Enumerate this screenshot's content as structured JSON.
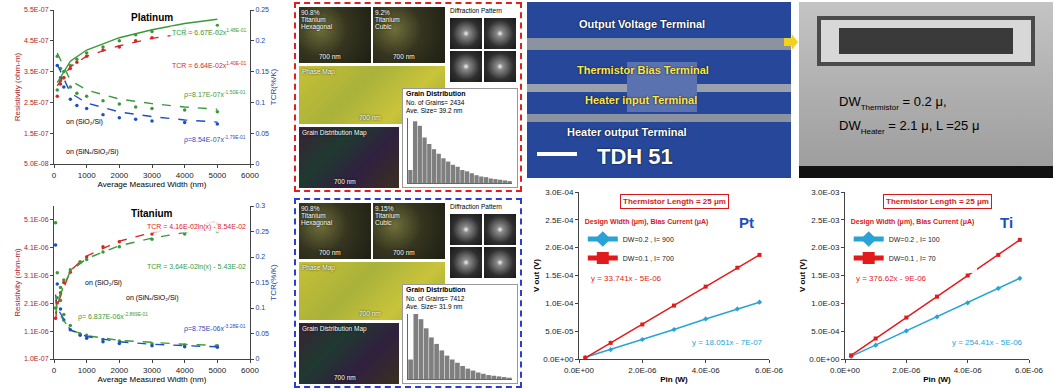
{
  "chart_data": [
    {
      "type": "scatter",
      "title": "Platinum",
      "xlabel": "Average Measured Width (nm)",
      "ylabel": "Resistivity (ohm-m)",
      "y2label": "TCR(%/K)",
      "grid": false,
      "xlim": [
        0,
        6000
      ],
      "xticks": [
        0,
        1000,
        2000,
        3000,
        4000,
        5000,
        6000
      ],
      "ylim": [
        5e-08,
        5.5e-07
      ],
      "yticks": [
        {
          "value": 5e-08,
          "label": "5.0E-08"
        },
        {
          "value": 1.5e-07,
          "label": "1.5E-07"
        },
        {
          "value": 2.5e-07,
          "label": "2.5E-07"
        },
        {
          "value": 3.5e-07,
          "label": "3.5E-07"
        },
        {
          "value": 4.5e-07,
          "label": "4.5E-07"
        },
        {
          "value": 5.5e-07,
          "label": "5.5E-07"
        }
      ],
      "y2lim": [
        0,
        0.25
      ],
      "y2ticks": [
        0,
        0.05,
        0.1,
        0.15,
        0.2,
        0.25
      ],
      "series": [
        {
          "type": "scatter",
          "axis": "y2",
          "color": "#3a9a3a",
          "marker": "circle",
          "x": [
            100,
            200,
            300,
            500,
            700,
            1000,
            1500,
            2000,
            2500,
            3000,
            4000,
            5000
          ],
          "values": [
            0.12,
            0.135,
            0.15,
            0.16,
            0.17,
            0.18,
            0.19,
            0.2,
            0.21,
            0.215,
            0.22,
            0.225
          ]
        },
        {
          "type": "scatter",
          "axis": "y2",
          "color": "#d62728",
          "marker": "circle",
          "x": [
            100,
            200,
            300,
            500,
            700,
            1000,
            1500,
            2000,
            2500,
            3000,
            4000,
            5000
          ],
          "values": [
            0.11,
            0.13,
            0.14,
            0.155,
            0.165,
            0.175,
            0.185,
            0.19,
            0.2,
            0.205,
            0.21,
            0.215
          ]
        },
        {
          "type": "scatter",
          "axis": "y",
          "color": "#3a9a3a",
          "marker": "circle",
          "x": [
            100,
            200,
            300,
            500,
            700,
            1000,
            1500,
            2000,
            2500,
            3000,
            4000,
            5000
          ],
          "values": [
            4e-07,
            3.6e-07,
            3.3e-07,
            3e-07,
            2.8e-07,
            2.7e-07,
            2.55e-07,
            2.45e-07,
            2.35e-07,
            2.3e-07,
            2.25e-07,
            2.2e-07
          ]
        },
        {
          "type": "scatter",
          "axis": "y",
          "color": "#1f4fbf",
          "marker": "circle",
          "x": [
            100,
            200,
            300,
            500,
            700,
            1000,
            1500,
            2000,
            2500,
            3000,
            4000,
            5000
          ],
          "values": [
            3.7e-07,
            3.3e-07,
            3e-07,
            2.6e-07,
            2.4e-07,
            2.3e-07,
            2.1e-07,
            2e-07,
            1.95e-07,
            1.9e-07,
            1.85e-07,
            1.8e-07
          ]
        },
        {
          "type": "line",
          "axis": "y2",
          "color": "#3a9a3a",
          "line_style": "solid",
          "x": [
            100,
            500,
            1000,
            2000,
            3000,
            4000,
            5000
          ],
          "values": [
            0.132,
            0.167,
            0.185,
            0.205,
            0.218,
            0.228,
            0.235
          ]
        },
        {
          "type": "line",
          "axis": "y2",
          "color": "#d62728",
          "line_style": "dash",
          "x": [
            100,
            500,
            1000,
            2000,
            3000,
            4000,
            5000
          ],
          "values": [
            0.127,
            0.158,
            0.175,
            0.192,
            0.204,
            0.212,
            0.219
          ]
        },
        {
          "type": "line",
          "axis": "y",
          "color": "#3a9a3a",
          "line_style": "dash",
          "x": [
            100,
            500,
            1000,
            2000,
            3000,
            4000,
            5000
          ],
          "values": [
            4.1e-07,
            3.22e-07,
            2.9e-07,
            2.61e-07,
            2.46e-07,
            2.35e-07,
            2.28e-07
          ]
        },
        {
          "type": "line",
          "axis": "y",
          "color": "#1f4fbf",
          "line_style": "dash",
          "x": [
            100,
            500,
            1000,
            2000,
            3000,
            4000,
            5000
          ],
          "values": [
            3.74e-07,
            2.81e-07,
            2.48e-07,
            2.19e-07,
            2.04e-07,
            1.93e-07,
            1.86e-07
          ]
        }
      ],
      "annotations": [
        {
          "text": "TCR = 6.67E-02x",
          "sup": "1.48E-01",
          "color": "#3a9a3a"
        },
        {
          "text": "TCR = 6.64E-02x",
          "sup": "1.40E-01",
          "color": "#d62728"
        },
        {
          "text": "ρ=8.17E-07x",
          "sup": "-1.50E-01",
          "color": "#3a9a3a"
        },
        {
          "text": "ρ=8.54E-07x",
          "sup": "-1.79E-01",
          "color": "#1f4fbf"
        },
        {
          "text": "on (SiO₂/Si)",
          "color": "#000000"
        },
        {
          "text": "on (SiNₓ/SiO₂/Si)",
          "color": "#000000"
        }
      ]
    },
    {
      "type": "scatter",
      "title": "Titanium",
      "xlabel": "Average Measured Width (nm)",
      "ylabel": "Resistivity (ohm-m)",
      "y2label": "TCR(%/K)",
      "grid": false,
      "xlim": [
        0,
        6000
      ],
      "xticks": [
        0,
        1000,
        2000,
        3000,
        4000,
        5000,
        6000
      ],
      "ylim": [
        1e-07,
        5.6e-06
      ],
      "yticks": [
        {
          "value": 1e-07,
          "label": "1.0E-07"
        },
        {
          "value": 1.1e-06,
          "label": "1.1E-06"
        },
        {
          "value": 2.1e-06,
          "label": "2.1E-06"
        },
        {
          "value": 3.1e-06,
          "label": "3.1E-06"
        },
        {
          "value": 4.1e-06,
          "label": "4.1E-06"
        },
        {
          "value": 5.1e-06,
          "label": "5.1E-06"
        }
      ],
      "y2lim": [
        0,
        0.3
      ],
      "y2ticks": [
        0,
        0.05,
        0.1,
        0.15,
        0.2,
        0.25,
        0.3
      ],
      "series": [
        {
          "type": "scatter",
          "axis": "y2",
          "color": "#d62728",
          "marker": "circle",
          "x": [
            50,
            100,
            200,
            300,
            500,
            800,
            1000,
            1500,
            2000,
            3000,
            4000,
            5000
          ],
          "values": [
            0.08,
            0.11,
            0.13,
            0.15,
            0.17,
            0.19,
            0.2,
            0.22,
            0.23,
            0.245,
            0.255,
            0.265
          ]
        },
        {
          "type": "scatter",
          "axis": "y2",
          "color": "#3a9a3a",
          "marker": "circle",
          "x": [
            50,
            100,
            200,
            300,
            500,
            800,
            1000,
            1500,
            2000,
            3000,
            4000,
            5000
          ],
          "values": [
            0.1,
            0.12,
            0.14,
            0.155,
            0.175,
            0.19,
            0.195,
            0.21,
            0.22,
            0.235,
            0.245,
            0.25
          ]
        },
        {
          "type": "scatter",
          "axis": "y",
          "color": "#3a9a3a",
          "marker": "circle",
          "x": [
            50,
            100,
            200,
            300,
            500,
            800,
            1000,
            1500,
            2000,
            3000,
            4000,
            5000
          ],
          "values": [
            5e-06,
            3.2e-06,
            2.2e-06,
            1.7e-06,
            1.3e-06,
            1e-06,
            9.5e-07,
            8e-07,
            7.5e-07,
            6.5e-07,
            6e-07,
            5.8e-07
          ]
        },
        {
          "type": "scatter",
          "axis": "y",
          "color": "#1f4fbf",
          "marker": "circle",
          "x": [
            50,
            100,
            200,
            300,
            500,
            800,
            1000,
            1500,
            2000,
            3000,
            4000,
            5000
          ],
          "values": [
            4.2e-06,
            2.8e-06,
            1.9e-06,
            1.5e-06,
            1.15e-06,
            9.5e-07,
            8.5e-07,
            7.2e-07,
            6.6e-07,
            5.8e-07,
            5.4e-07,
            5.2e-07
          ]
        },
        {
          "type": "line",
          "axis": "y2",
          "color": "#d62728",
          "line_style": "dash",
          "x": [
            50,
            100,
            500,
            1000,
            2000,
            3000,
            4000,
            5000
          ],
          "values": [
            0.077,
            0.106,
            0.173,
            0.202,
            0.231,
            0.248,
            0.26,
            0.269
          ]
        },
        {
          "type": "line",
          "axis": "y2",
          "color": "#3a9a3a",
          "line_style": "dash",
          "x": [
            50,
            100,
            500,
            1000,
            2000,
            3000,
            4000,
            5000
          ],
          "values": [
            0.088,
            0.113,
            0.172,
            0.197,
            0.222,
            0.237,
            0.248,
            0.256
          ]
        },
        {
          "type": "line",
          "axis": "y",
          "color": "#3a9a3a",
          "line_style": "dash",
          "x": [
            50,
            100,
            500,
            1000,
            2000,
            3000,
            4000,
            5000
          ],
          "values": [
            2.23e-06,
            1.82e-06,
            1.15e-06,
            9.4e-07,
            7.7e-07,
            6.9e-07,
            6.3e-07,
            5.9e-07
          ]
        },
        {
          "type": "line",
          "axis": "y",
          "color": "#1f4fbf",
          "line_style": "dash",
          "x": [
            50,
            100,
            500,
            1000,
            2000,
            3000,
            4000,
            5000
          ],
          "values": [
            2.42e-06,
            1.93e-06,
            1.14e-06,
            9.1e-07,
            7.2e-07,
            6.3e-07,
            5.8e-07,
            5.4e-07
          ]
        }
      ],
      "annotations": [
        {
          "text": "TCR = 4.16E-02ln(x) - 8.54E-02",
          "color": "#d62728"
        },
        {
          "text": "TCR = 3.64E-02ln(x) - 5.43E-02",
          "color": "#3a9a3a"
        },
        {
          "text": "ρ= 6.837E-06x",
          "sup": "-2.869E-01",
          "color": "#3a9a3a"
        },
        {
          "text": "ρ=8.75E-06x",
          "sup": "-3.28E-01",
          "color": "#1f4fbf"
        },
        {
          "text": "on (SiO₂/Si)",
          "color": "#000000"
        },
        {
          "text": "on (SiNₓ/SiO₂/Si)",
          "color": "#000000"
        }
      ]
    },
    {
      "type": "line",
      "title": "Thermistor Length = 25 μm",
      "subtitle": "Design Width (μm), Bias Current (μA)",
      "xlabel": "Pin (W)",
      "ylabel": "V out (V)",
      "grid": false,
      "legend": "top left",
      "xlim": [
        0,
        6e-06
      ],
      "xticks": [
        {
          "value": 0,
          "label": "0.0E+00"
        },
        {
          "value": 2e-06,
          "label": "2.0E-06"
        },
        {
          "value": 4e-06,
          "label": "4.0E-06"
        },
        {
          "value": 6e-06,
          "label": "6.0E-06"
        }
      ],
      "ylim": [
        0,
        0.0003
      ],
      "yticks": [
        {
          "value": 0,
          "label": "0.0E+00"
        },
        {
          "value": 5e-05,
          "label": "5.0E-05"
        },
        {
          "value": 0.0001,
          "label": "1.0E-04"
        },
        {
          "value": 0.00015,
          "label": "1.5E-04"
        },
        {
          "value": 0.0002,
          "label": "2.0E-04"
        },
        {
          "value": 0.00025,
          "label": "2.5E-04"
        },
        {
          "value": 0.0003,
          "label": "3.0E-04"
        }
      ],
      "x": [
        2e-07,
        1e-06,
        2e-06,
        3e-06,
        4e-06,
        5e-06,
        5.7e-06
      ],
      "series": [
        {
          "name": "DW=0.2 , I= 900",
          "color": "#29a3d6",
          "marker": "diamond",
          "values": [
            3e-06,
            1.7e-05,
            3.5e-05,
            5.3e-05,
            7.2e-05,
            9e-05,
            0.000102
          ]
        },
        {
          "name": "DW=0.1 , I= 700",
          "color": "#e31a1c",
          "marker": "square",
          "values": [
            2e-06,
            2.9e-05,
            6.2e-05,
            9.6e-05,
            0.00013,
            0.000164,
            0.000187
          ]
        }
      ],
      "annotations": [
        {
          "text": "y = 33.741x - 5E-06",
          "color": "#e31a1c"
        },
        {
          "text": "y = 18.051x - 7E-07",
          "color": "#29a3d6"
        },
        {
          "text": "Pt",
          "color": "#1f4fbf"
        }
      ]
    },
    {
      "type": "line",
      "title": "Thermistor Length = 25 μm",
      "subtitle": "Design Width (μm), Bias Current (μA)",
      "xlabel": "Pin (W)",
      "ylabel": "V out (V)",
      "grid": false,
      "legend": "top left",
      "xlim": [
        0,
        6e-06
      ],
      "xticks": [
        {
          "value": 0,
          "label": "0.0E+00"
        },
        {
          "value": 2e-06,
          "label": "2.0E-06"
        },
        {
          "value": 4e-06,
          "label": "4.0E-06"
        },
        {
          "value": 6e-06,
          "label": "6.0E-06"
        }
      ],
      "ylim": [
        0,
        0.003
      ],
      "yticks": [
        {
          "value": 0,
          "label": "0.0E+00"
        },
        {
          "value": 0.0005,
          "label": "5.0E-04"
        },
        {
          "value": 0.001,
          "label": "1.0E-03"
        },
        {
          "value": 0.0015,
          "label": "1.5E-03"
        },
        {
          "value": 0.002,
          "label": "2.0E-03"
        },
        {
          "value": 0.0025,
          "label": "2.5E-03"
        },
        {
          "value": 0.003,
          "label": "3.0E-03"
        }
      ],
      "x": [
        2e-07,
        1e-06,
        2e-06,
        3e-06,
        4e-06,
        5e-06,
        5.7e-06
      ],
      "series": [
        {
          "name": "DW=0.2 , I= 100",
          "color": "#29a3d6",
          "marker": "diamond",
          "values": [
            4.6e-05,
            0.000249,
            0.000504,
            0.000758,
            0.00101,
            0.00127,
            0.00145
          ]
        },
        {
          "name": "DW=0.1 , I= 70",
          "color": "#e31a1c",
          "marker": "square",
          "values": [
            6.6e-05,
            0.000368,
            0.000744,
            0.00112,
            0.0015,
            0.00187,
            0.00214
          ]
        }
      ],
      "annotations": [
        {
          "text": "y = 376.62x - 9E-06",
          "color": "#e31a1c"
        },
        {
          "text": "y = 254.41x - 5E-06",
          "color": "#29a3d6"
        },
        {
          "text": "Ti",
          "color": "#1f4fbf"
        }
      ]
    }
  ],
  "micrographs": [
    {
      "color": "#e0201c",
      "hex_label": [
        "90.8%",
        "Titanium",
        "Hexagonal"
      ],
      "cubic_label": [
        "9.2%",
        "Titanium",
        "Cubic"
      ],
      "scale": "700 nm",
      "phase_map": "Phase Map",
      "diffraction": "Diffraction Pattern",
      "grain_map": "Grain Distribution Map",
      "histogram": {
        "type": "bar",
        "title": "Grain Distribution",
        "grains": "No. of Grains= 2434",
        "size": "Ave. Size= 39.2 nm",
        "tick_labels": false,
        "color": "#7f7f7f",
        "ylim": [
          0,
          100
        ],
        "values": [
          20,
          95,
          88,
          70,
          60,
          52,
          45,
          38,
          33,
          28,
          25,
          20,
          18,
          15,
          12,
          10,
          9,
          7,
          6,
          5,
          4,
          3
        ]
      }
    },
    {
      "color": "#2a3ed0",
      "hex_label": [
        "90.8%",
        "Titanium",
        "Hexagonal"
      ],
      "cubic_label": [
        "9.15%",
        "Titanium",
        "Cubic"
      ],
      "scale": "700 nm",
      "phase_map": "Phase Map",
      "diffraction": "Diffraction Pattern",
      "grain_map": "Grain Distribution Map",
      "histogram": {
        "type": "bar",
        "title": "Grain Distribution",
        "grains": "No. of Grains= 7412",
        "size": "Ave. Size= 31.9 nm",
        "tick_labels": false,
        "color": "#7f7f7f",
        "ylim": [
          0,
          100
        ],
        "values": [
          30,
          100,
          92,
          78,
          64,
          54,
          44,
          36,
          30,
          25,
          20,
          16,
          13,
          10,
          8,
          6,
          5,
          4,
          3,
          2
        ]
      }
    }
  ],
  "device_images": {
    "optical": {
      "labels": [
        {
          "text": "Output Voltage Terminal",
          "color": "#ffffff"
        },
        {
          "text": "Thermistor Bias Terminal",
          "color": "#ffe84a"
        },
        {
          "text": "Heater input Terminal",
          "color": "#ffe84a"
        },
        {
          "text": "Heater output Terminal",
          "color": "#ffffff"
        }
      ],
      "name": "TDH 51"
    },
    "sem": {
      "lines": [
        {
          "main": "DW",
          "sub": "Thermistor",
          "rest": " = 0.2 μ,"
        },
        {
          "main": "DW",
          "sub": "Heater",
          "rest": " = 2.1 μ, L =25 μ"
        }
      ]
    }
  }
}
